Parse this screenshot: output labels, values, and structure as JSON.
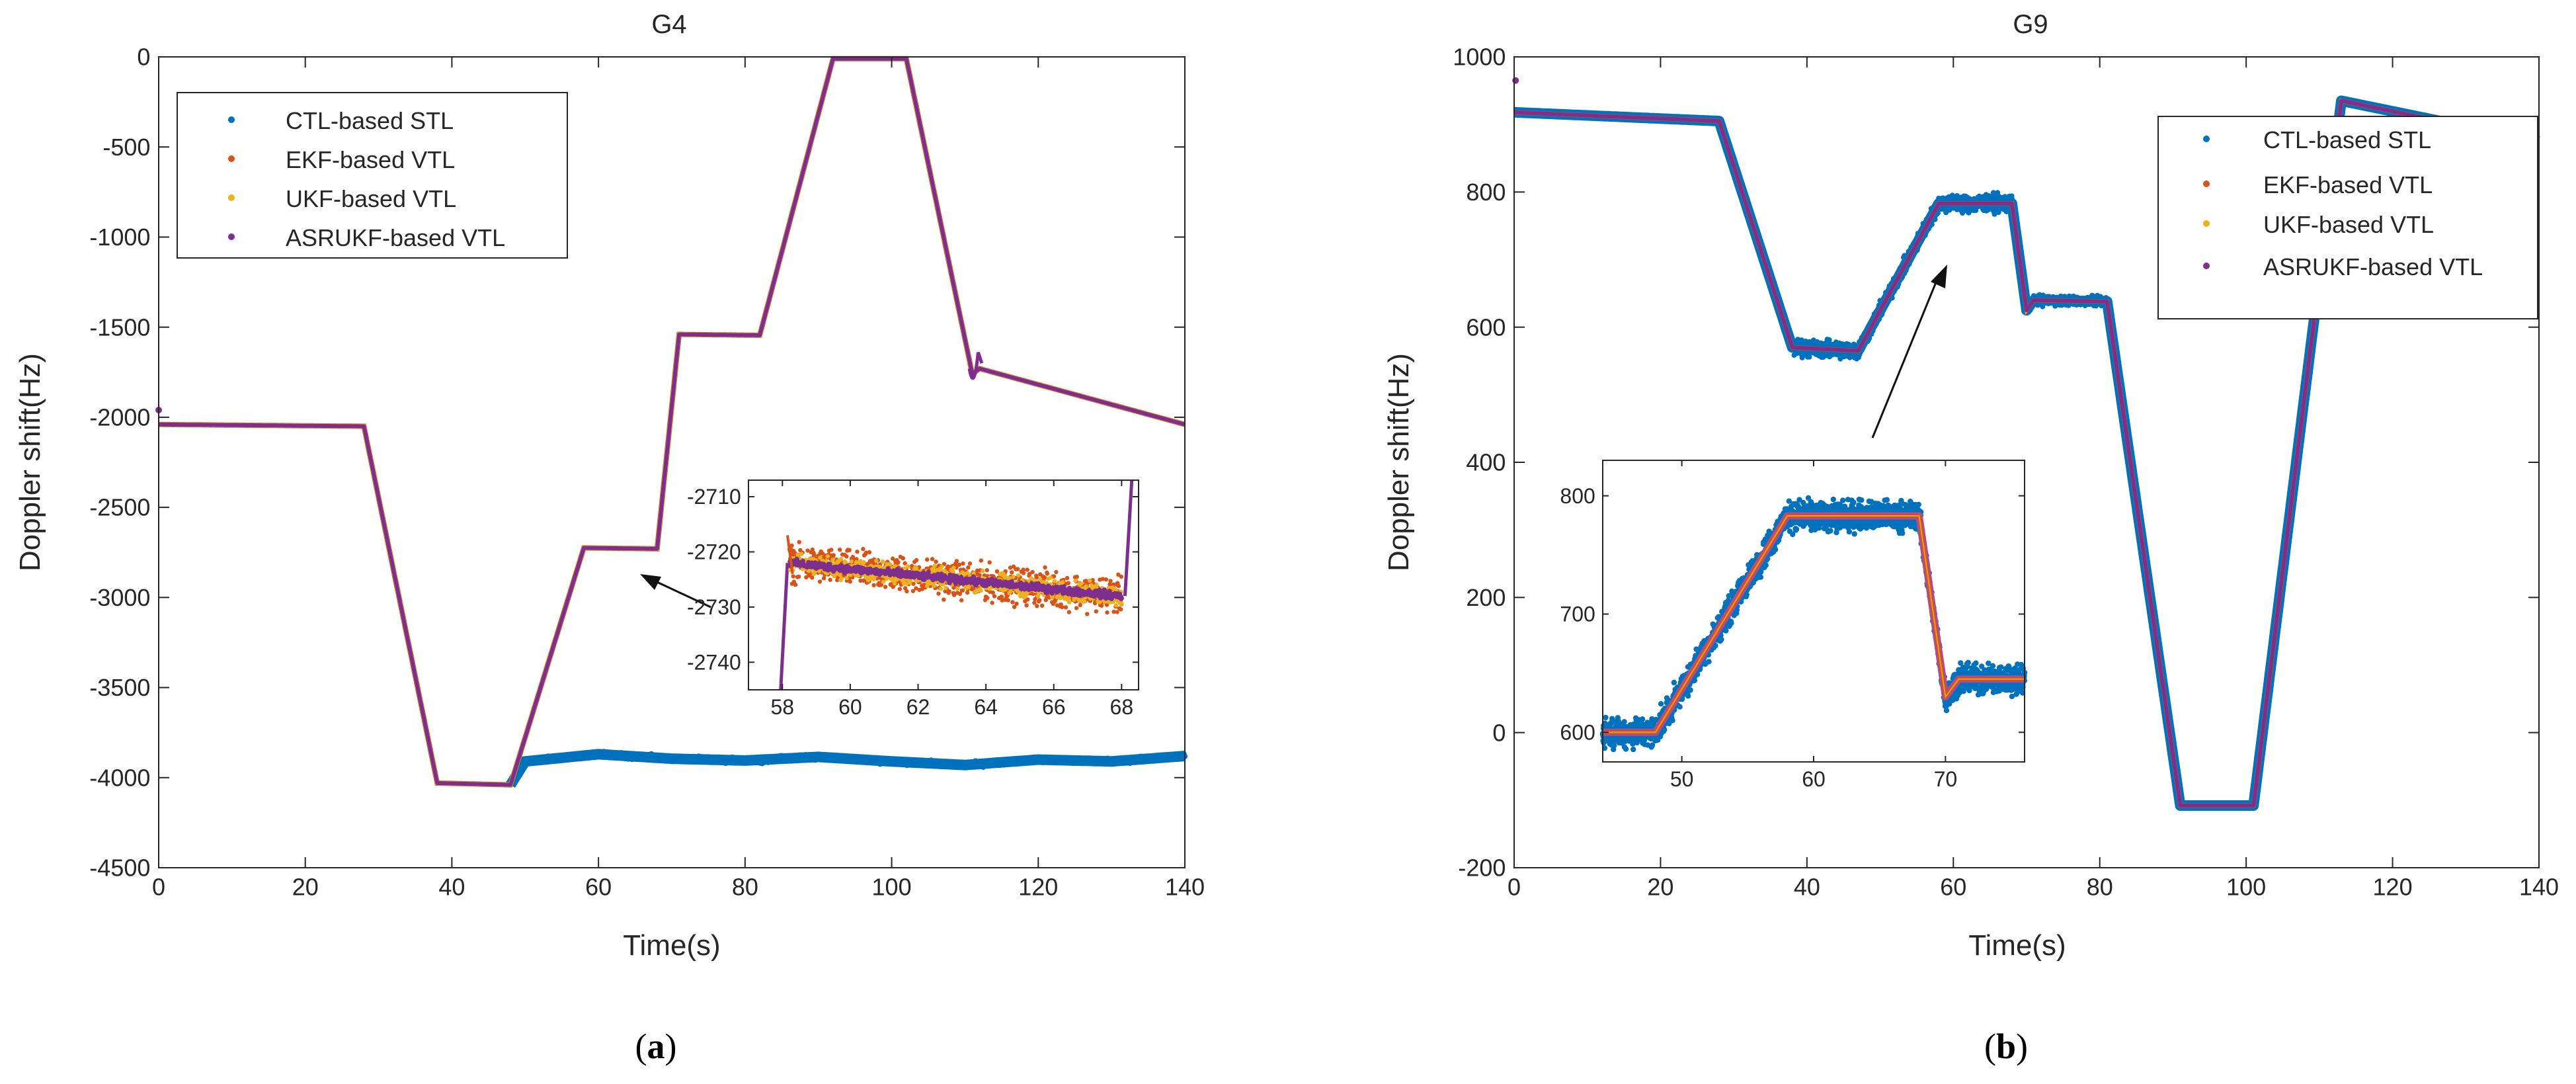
{
  "colors": {
    "ctl": "#0072BD",
    "ekf": "#D95319",
    "ukf": "#EDB120",
    "asrukf": "#7E2F8E",
    "ukf_inset_line": "#E0A11B",
    "asrukf_inset_b": "#B24A8C"
  },
  "chart_data": [
    {
      "type": "scatter",
      "id": "a",
      "title": "G4",
      "caption_letter": "a",
      "xlabel": "Time(s)",
      "ylabel": "Doppler shift(Hz)",
      "xlim": [
        0,
        140
      ],
      "ylim": [
        -4500,
        0
      ],
      "xticks": [
        "0",
        "20",
        "40",
        "60",
        "80",
        "100",
        "120",
        "140"
      ],
      "yticks": [
        "0",
        "-500",
        "-1000",
        "-1500",
        "-2000",
        "-2500",
        "-3000",
        "-3500",
        "-4000",
        "-4500"
      ],
      "legend": [
        "CTL-based STL",
        "EKF-based VTL",
        "UKF-based VTL",
        "ASRUKF-based VTL"
      ],
      "legend_position": "top-left",
      "series": [
        {
          "name": "CTL-based STL",
          "points": [
            [
              0,
              -2040
            ],
            [
              28,
              -2050
            ],
            [
              38,
              -4030
            ],
            [
              48,
              -4040
            ],
            [
              50,
              -3910
            ],
            [
              60,
              -3870
            ],
            [
              70,
              -3895
            ],
            [
              80,
              -3905
            ],
            [
              90,
              -3885
            ],
            [
              100,
              -3910
            ],
            [
              110,
              -3930
            ],
            [
              120,
              -3900
            ],
            [
              130,
              -3910
            ],
            [
              140,
              -3880
            ]
          ]
        },
        {
          "name": "ASRUKF-based VTL",
          "points": [
            [
              0,
              -2040
            ],
            [
              28,
              -2050
            ],
            [
              38,
              -4030
            ],
            [
              48,
              -4040
            ],
            [
              58,
              -2725
            ],
            [
              68,
              -2730
            ],
            [
              71,
              -1540
            ],
            [
              82,
              -1545
            ],
            [
              92,
              -10
            ],
            [
              102,
              -10
            ],
            [
              111,
              -1760
            ],
            [
              112,
              -1730
            ],
            [
              140,
              -2040
            ]
          ]
        }
      ],
      "inset": {
        "xlim": [
          57,
          68.5
        ],
        "ylim": [
          -2745,
          -2707
        ],
        "xticks": [
          "58",
          "60",
          "62",
          "64",
          "66",
          "68"
        ],
        "yticks": [
          "-2710",
          "-2720",
          "-2730",
          "-2740"
        ],
        "series": [
          {
            "name": "EKF-based VTL",
            "center": [
              [
                58.2,
                -2724
              ],
              [
                68,
                -2728
              ]
            ],
            "spread": 4.5
          },
          {
            "name": "UKF-based VTL",
            "center": [
              [
                58.2,
                -2724
              ],
              [
                68,
                -2728
              ]
            ],
            "spread": 3
          },
          {
            "name": "ASRUKF-based VTL",
            "center": [
              [
                58.2,
                -2724
              ],
              [
                68,
                -2727
              ]
            ],
            "spread": 1.2
          }
        ]
      }
    },
    {
      "type": "scatter",
      "id": "b",
      "title": "G9",
      "caption_letter": "b",
      "xlabel": "Time(s)",
      "ylabel": "Doppler shift(Hz)",
      "xlim": [
        0,
        140
      ],
      "ylim": [
        -200,
        1000
      ],
      "xticks": [
        "0",
        "20",
        "40",
        "60",
        "80",
        "100",
        "120",
        "140"
      ],
      "yticks": [
        "1000",
        "800",
        "600",
        "400",
        "200",
        "0",
        "-200"
      ],
      "legend": [
        "CTL-based STL",
        "EKF-based VTL",
        "UKF-based VTL",
        "ASRUKF-based VTL"
      ],
      "legend_position": "top-right",
      "series": [
        {
          "name": "CTL-based STL",
          "points": [
            [
              0,
              918
            ],
            [
              28,
              905
            ],
            [
              38,
              570
            ],
            [
              47,
              565
            ],
            [
              58,
              783
            ],
            [
              68,
              783
            ],
            [
              70,
              625
            ],
            [
              71,
              640
            ],
            [
              81,
              638
            ],
            [
              91,
              -108
            ],
            [
              101,
              -108
            ],
            [
              113,
              935
            ],
            [
              140,
              875
            ]
          ],
          "noise": [
            [
              36,
              69,
              18
            ],
            [
              69,
              81,
              10
            ]
          ]
        },
        {
          "name": "ASRUKF-based VTL",
          "points": [
            [
              0,
              918
            ],
            [
              28,
              905
            ],
            [
              38,
              570
            ],
            [
              47,
              565
            ],
            [
              58,
              783
            ],
            [
              68,
              783
            ],
            [
              70,
              625
            ],
            [
              71,
              640
            ],
            [
              81,
              638
            ],
            [
              91,
              -108
            ],
            [
              101,
              -108
            ],
            [
              113,
              935
            ],
            [
              140,
              875
            ]
          ]
        }
      ],
      "inset": {
        "xlim": [
          44,
          76
        ],
        "ylim": [
          575,
          830
        ],
        "xticks": [
          "50",
          "60",
          "70"
        ],
        "yticks": [
          "800",
          "700",
          "600"
        ],
        "series": [
          {
            "name": "CTL-based STL",
            "center": [
              [
                44,
                600
              ],
              [
                48,
                600
              ],
              [
                58,
                783
              ],
              [
                68,
                783
              ],
              [
                70,
                630
              ],
              [
                71,
                645
              ],
              [
                76,
                645
              ]
            ],
            "spread": 20
          },
          {
            "name": "EKF-based VTL",
            "center": [
              [
                44,
                600
              ],
              [
                48,
                600
              ],
              [
                58,
                783
              ],
              [
                68,
                783
              ],
              [
                70,
                630
              ],
              [
                71,
                645
              ],
              [
                76,
                645
              ]
            ],
            "spread": 0
          },
          {
            "name": "UKF-based VTL",
            "center": [
              [
                44,
                600
              ],
              [
                48,
                600
              ],
              [
                58,
                783
              ],
              [
                68,
                783
              ],
              [
                70,
                630
              ],
              [
                71,
                645
              ],
              [
                76,
                645
              ]
            ],
            "spread": 0
          }
        ]
      }
    }
  ]
}
